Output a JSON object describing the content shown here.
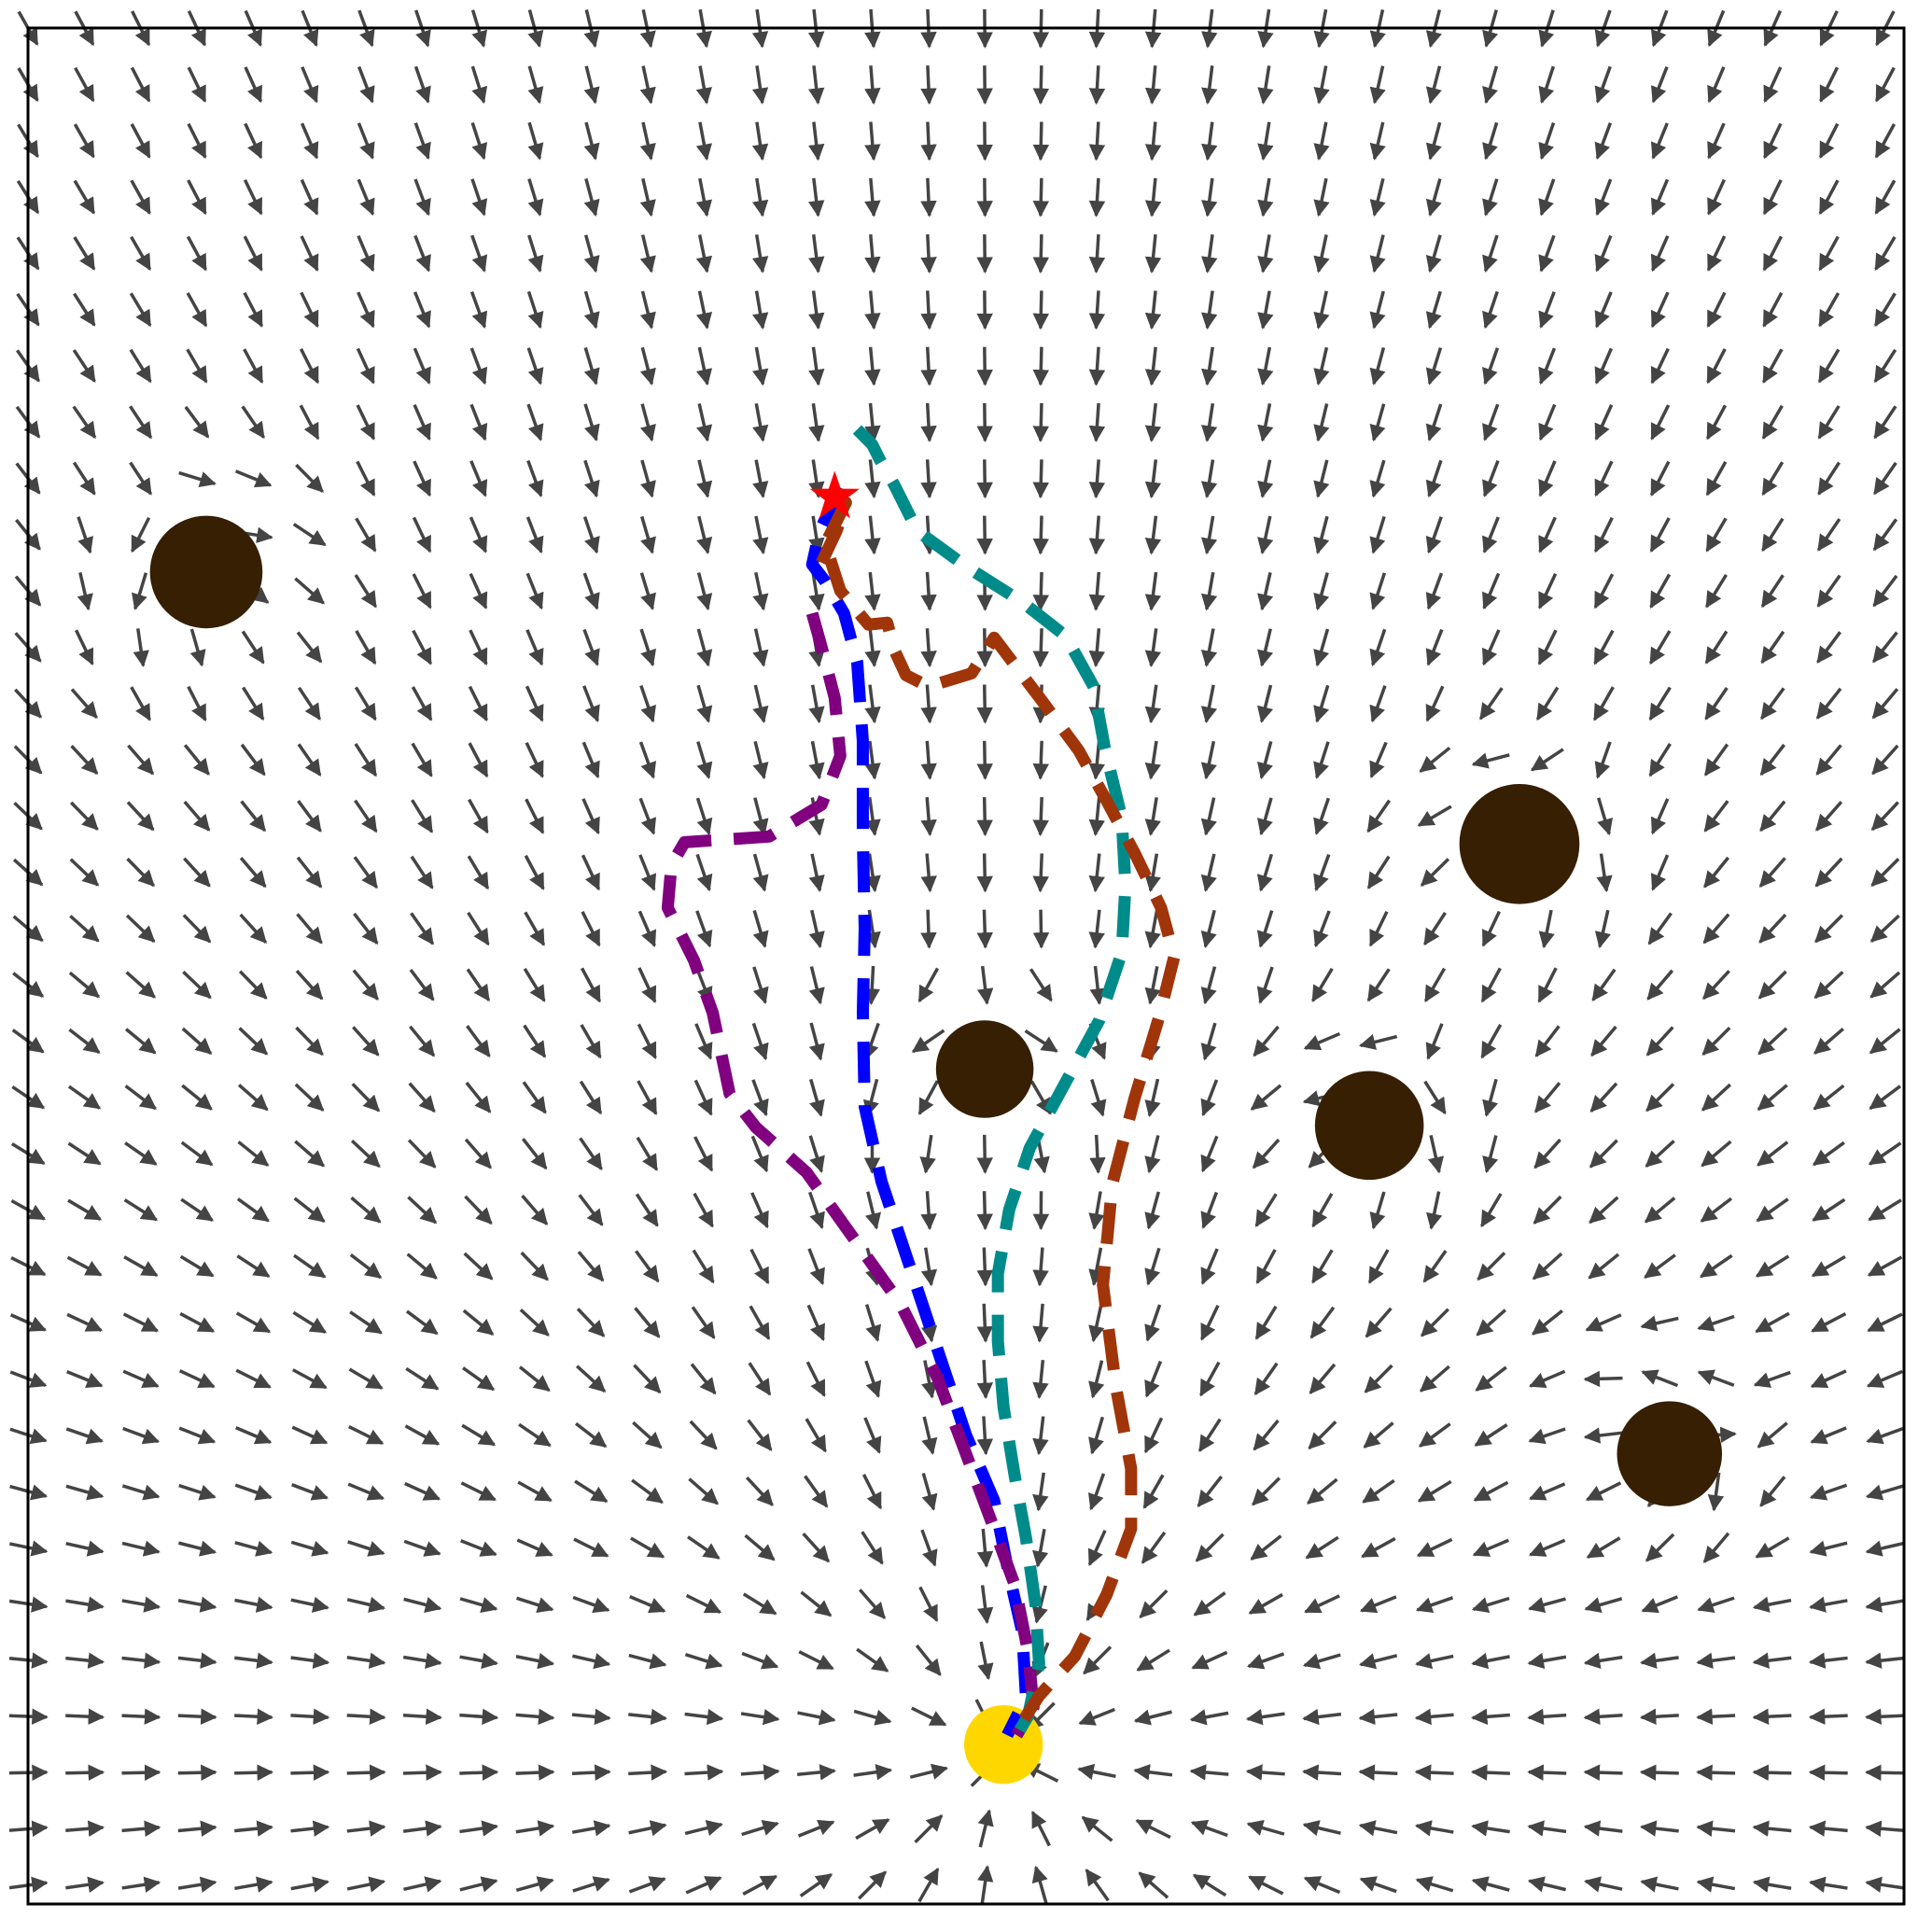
{
  "chart_data": {
    "type": "diagram",
    "description_visible_text": [],
    "axes": {
      "xlim": [
        0,
        100
      ],
      "ylim": [
        0,
        100
      ],
      "ticks_shown": false,
      "frame": true
    },
    "colors": {
      "arrow": "#444444",
      "obstacle": "#361f03",
      "goal": "#ffd700",
      "start": "#ff0000",
      "paths": [
        "#0000ff",
        "#800080",
        "#008b8b",
        "#a0350a"
      ]
    },
    "vector_field": {
      "grid_x": [
        0,
        3,
        6,
        9,
        12,
        15,
        18,
        21,
        24,
        27,
        30,
        33,
        36,
        39,
        42,
        45,
        48,
        51,
        54,
        57,
        60,
        63,
        66,
        69,
        72,
        75,
        78,
        81,
        84,
        87,
        90,
        93,
        96,
        99
      ],
      "grid_y": [
        1,
        4,
        7,
        10,
        13,
        16,
        19,
        22,
        25,
        28,
        31,
        34,
        37,
        40,
        43,
        46,
        49,
        52,
        55,
        58,
        61,
        64,
        67,
        70,
        73,
        76,
        79,
        82,
        85,
        88,
        91,
        94,
        97,
        100
      ],
      "attractor": [
        52,
        8
      ],
      "repulsion_radius": 9
    },
    "obstacles": [
      {
        "x": 9.5,
        "y": 71,
        "r": 3.0
      },
      {
        "x": 79.5,
        "y": 56.5,
        "r": 3.2
      },
      {
        "x": 51,
        "y": 44.5,
        "r": 2.6
      },
      {
        "x": 71.5,
        "y": 41.5,
        "r": 2.9
      },
      {
        "x": 87.5,
        "y": 24,
        "r": 2.8
      }
    ],
    "goal": {
      "x": 52,
      "y": 8.5,
      "r": 2.1
    },
    "start": {
      "x": 43,
      "y": 75
    },
    "paths": [
      {
        "color": "#0000ff",
        "points": [
          [
            43.3,
            75.5
          ],
          [
            42.2,
            73.2
          ],
          [
            41.8,
            71.4
          ],
          [
            42.5,
            70.5
          ],
          [
            43.5,
            68.8
          ],
          [
            44.2,
            66.2
          ],
          [
            44.5,
            62
          ],
          [
            44.5,
            57
          ],
          [
            44.6,
            52
          ],
          [
            44.5,
            47.5
          ],
          [
            44.6,
            42.5
          ],
          [
            45.5,
            38.5
          ],
          [
            47,
            34
          ],
          [
            48.5,
            29.5
          ],
          [
            50,
            25
          ],
          [
            51.5,
            21.5
          ],
          [
            52.2,
            18
          ],
          [
            53,
            14.5
          ],
          [
            53.2,
            11
          ],
          [
            52.2,
            9
          ]
        ]
      },
      {
        "color": "#800080",
        "points": [
          [
            41.8,
            68.8
          ],
          [
            42.3,
            67
          ],
          [
            43,
            64.3
          ],
          [
            43.3,
            61.2
          ],
          [
            42.3,
            58.6
          ],
          [
            39.5,
            56.9
          ],
          [
            35,
            56.6
          ],
          [
            34.3,
            55.4
          ],
          [
            34.1,
            53.1
          ],
          [
            35.5,
            50.3
          ],
          [
            36.5,
            47.5
          ],
          [
            37.4,
            43.2
          ],
          [
            38.8,
            41.4
          ],
          [
            41.5,
            39
          ],
          [
            44,
            35.5
          ],
          [
            46.5,
            32
          ],
          [
            48.5,
            28
          ],
          [
            50,
            24
          ],
          [
            51.5,
            20
          ],
          [
            52.6,
            17
          ],
          [
            53.3,
            13.5
          ],
          [
            53.6,
            10.5
          ],
          [
            52.7,
            9
          ]
        ]
      },
      {
        "color": "#008b8b",
        "points": [
          [
            44.2,
            78.6
          ],
          [
            45,
            77.8
          ],
          [
            45.4,
            77
          ],
          [
            46.2,
            75.6
          ],
          [
            47.4,
            73.2
          ],
          [
            50,
            71.3
          ],
          [
            53,
            69.4
          ],
          [
            55.3,
            67.6
          ],
          [
            56.8,
            64.9
          ],
          [
            57.4,
            61.6
          ],
          [
            58.3,
            57.9
          ],
          [
            58.5,
            54.3
          ],
          [
            58.3,
            50.7
          ],
          [
            57.1,
            47.1
          ],
          [
            55.2,
            43.6
          ],
          [
            53.4,
            40.3
          ],
          [
            52.3,
            37
          ],
          [
            51.7,
            33.6
          ],
          [
            51.7,
            30
          ],
          [
            52,
            26.5
          ],
          [
            52.6,
            22.8
          ],
          [
            53.2,
            19.5
          ],
          [
            53.7,
            16
          ],
          [
            53.9,
            12.8
          ],
          [
            53.3,
            10
          ],
          [
            52.7,
            9
          ]
        ]
      },
      {
        "color": "#a0350a",
        "points": [
          [
            42.3,
            71.5
          ],
          [
            43.1,
            73.2
          ],
          [
            43.6,
            74.7
          ],
          [
            42.5,
            72.5
          ],
          [
            43.3,
            70
          ],
          [
            44.8,
            68.2
          ],
          [
            45.8,
            68.3
          ],
          [
            46.2,
            66.8
          ],
          [
            46.8,
            65.5
          ],
          [
            48,
            64.9
          ],
          [
            50.3,
            65.6
          ],
          [
            51.5,
            67.5
          ],
          [
            54,
            64.2
          ],
          [
            56,
            61.5
          ],
          [
            57.5,
            58.8
          ],
          [
            59,
            56
          ],
          [
            60.4,
            53.1
          ],
          [
            61.1,
            50.5
          ],
          [
            60.3,
            47.3
          ],
          [
            59,
            43
          ],
          [
            57.8,
            38.4
          ],
          [
            57.3,
            33
          ],
          [
            58,
            27.5
          ],
          [
            58.8,
            23.2
          ],
          [
            58.8,
            20
          ],
          [
            57.5,
            16.5
          ],
          [
            55.8,
            13.2
          ],
          [
            53.9,
            11.1
          ],
          [
            52.8,
            9.4
          ]
        ]
      }
    ]
  }
}
